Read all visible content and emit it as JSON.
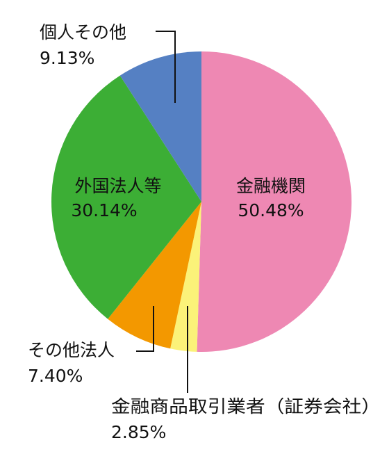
{
  "chart_data": {
    "type": "pie",
    "title": "",
    "start_angle_deg": 0,
    "direction": "clockwise",
    "slices": [
      {
        "label": "金融機関",
        "value": 50.48,
        "value_text": "50.48%",
        "color": "#ee88b3"
      },
      {
        "label": "金融商品取引業者（証券会社）",
        "value": 2.85,
        "value_text": "2.85%",
        "color": "#fbf279"
      },
      {
        "label": "その他法人",
        "value": 7.4,
        "value_text": "7.40%",
        "color": "#f39800"
      },
      {
        "label": "外国法人等",
        "value": 30.14,
        "value_text": "30.14%",
        "color": "#3cae35"
      },
      {
        "label": "個人その他",
        "value": 9.13,
        "value_text": "9.13%",
        "color": "#5580c3"
      }
    ]
  }
}
